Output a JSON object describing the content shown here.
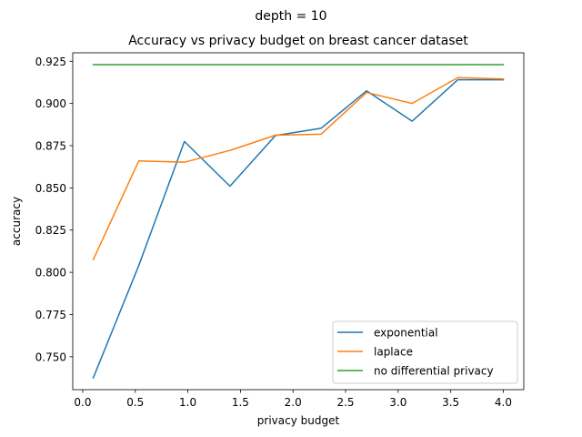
{
  "chart_data": {
    "type": "line",
    "suptitle": "depth = 10",
    "title": "Accuracy vs privacy budget on breast cancer dataset",
    "xlabel": "privacy budget",
    "ylabel": "accuracy",
    "xlim": [
      -0.095,
      4.195
    ],
    "ylim": [
      0.7305,
      0.93
    ],
    "xticks": [
      0.0,
      0.5,
      1.0,
      1.5,
      2.0,
      2.5,
      3.0,
      3.5,
      4.0
    ],
    "xtick_labels": [
      "0.0",
      "0.5",
      "1.0",
      "1.5",
      "2.0",
      "2.5",
      "3.0",
      "3.5",
      "4.0"
    ],
    "yticks": [
      0.75,
      0.775,
      0.8,
      0.825,
      0.85,
      0.875,
      0.9,
      0.925
    ],
    "ytick_labels": [
      "0.750",
      "0.775",
      "0.800",
      "0.825",
      "0.850",
      "0.875",
      "0.900",
      "0.925"
    ],
    "grid": false,
    "legend_position": "lower-right",
    "x": [
      0.1,
      0.533,
      0.967,
      1.4,
      1.833,
      2.267,
      2.7,
      3.133,
      3.567,
      4.0
    ],
    "series": [
      {
        "name": "exponential",
        "color": "#1f77b4",
        "values": [
          0.7375,
          0.804,
          0.8775,
          0.851,
          0.881,
          0.8853,
          0.9075,
          0.8895,
          0.914,
          0.914
        ]
      },
      {
        "name": "laplace",
        "color": "#ff7f0e",
        "values": [
          0.8075,
          0.866,
          0.8652,
          0.8722,
          0.8812,
          0.8818,
          0.9065,
          0.9,
          0.9153,
          0.9145
        ]
      },
      {
        "name": "no differential privacy",
        "color": "#2ca02c",
        "values": [
          0.923,
          0.923,
          0.923,
          0.923,
          0.923,
          0.923,
          0.923,
          0.923,
          0.923,
          0.923
        ]
      }
    ]
  }
}
